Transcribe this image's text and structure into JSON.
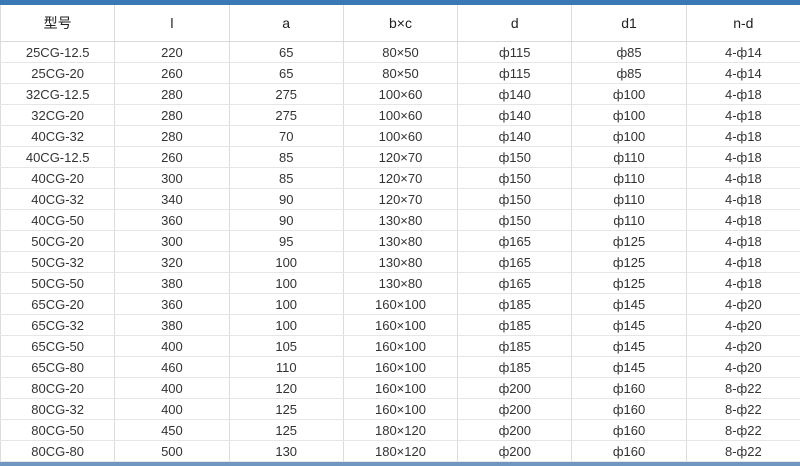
{
  "page": {
    "top_bar_color": "#3b78b6",
    "bottom_bar_color": "#6e96c0",
    "border_color": "#dcdcdc"
  },
  "table": {
    "columns": [
      "型号",
      "l",
      "a",
      "b×c",
      "d",
      "d1",
      "n-d"
    ],
    "rows": [
      [
        "25CG-12.5",
        "220",
        "65",
        "80×50",
        "ф115",
        "ф85",
        "4-ф14"
      ],
      [
        "25CG-20",
        "260",
        "65",
        "80×50",
        "ф115",
        "ф85",
        "4-ф14"
      ],
      [
        "32CG-12.5",
        "280",
        "275",
        "100×60",
        "ф140",
        "ф100",
        "4-ф18"
      ],
      [
        "32CG-20",
        "280",
        "275",
        "100×60",
        "ф140",
        "ф100",
        "4-ф18"
      ],
      [
        "40CG-32",
        "280",
        "70",
        "100×60",
        "ф140",
        "ф100",
        "4-ф18"
      ],
      [
        "40CG-12.5",
        "260",
        "85",
        "120×70",
        "ф150",
        "ф110",
        "4-ф18"
      ],
      [
        "40CG-20",
        "300",
        "85",
        "120×70",
        "ф150",
        "ф110",
        "4-ф18"
      ],
      [
        "40CG-32",
        "340",
        "90",
        "120×70",
        "ф150",
        "ф110",
        "4-ф18"
      ],
      [
        "40CG-50",
        "360",
        "90",
        "130×80",
        "ф150",
        "ф110",
        "4-ф18"
      ],
      [
        "50CG-20",
        "300",
        "95",
        "130×80",
        "ф165",
        "ф125",
        "4-ф18"
      ],
      [
        "50CG-32",
        "320",
        "100",
        "130×80",
        "ф165",
        "ф125",
        "4-ф18"
      ],
      [
        "50CG-50",
        "380",
        "100",
        "130×80",
        "ф165",
        "ф125",
        "4-ф18"
      ],
      [
        "65CG-20",
        "360",
        "100",
        "160×100",
        "ф185",
        "ф145",
        "4-ф20"
      ],
      [
        "65CG-32",
        "380",
        "100",
        "160×100",
        "ф185",
        "ф145",
        "4-ф20"
      ],
      [
        "65CG-50",
        "400",
        "105",
        "160×100",
        "ф185",
        "ф145",
        "4-ф20"
      ],
      [
        "65CG-80",
        "460",
        "110",
        "160×100",
        "ф185",
        "ф145",
        "4-ф20"
      ],
      [
        "80CG-20",
        "400",
        "120",
        "160×100",
        "ф200",
        "ф160",
        "8-ф22"
      ],
      [
        "80CG-32",
        "400",
        "125",
        "160×100",
        "ф200",
        "ф160",
        "8-ф22"
      ],
      [
        "80CG-50",
        "450",
        "125",
        "180×120",
        "ф200",
        "ф160",
        "8-ф22"
      ],
      [
        "80CG-80",
        "500",
        "130",
        "180×120",
        "ф200",
        "ф160",
        "8-ф22"
      ]
    ]
  }
}
